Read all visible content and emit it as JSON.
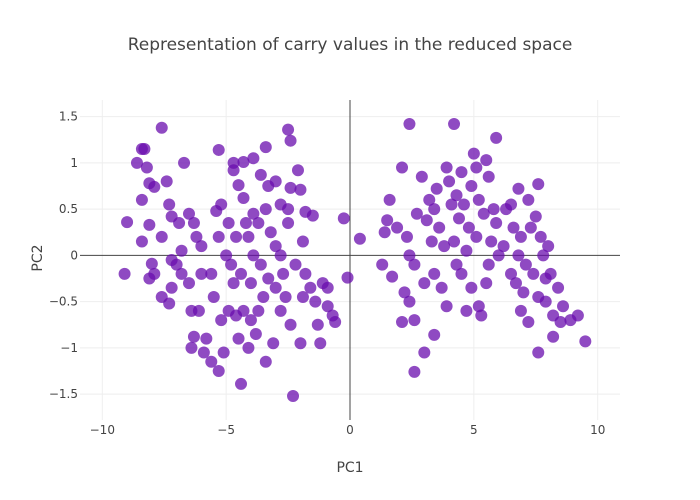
{
  "chart_data": {
    "type": "scatter",
    "title": "Representation of carry values in the reduced space",
    "xlabel": "PC1",
    "ylabel": "PC2",
    "xlim": [
      -10.9,
      10.9
    ],
    "ylim": [
      -1.78,
      1.68
    ],
    "x_ticks": [
      -10,
      -5,
      0,
      5,
      10
    ],
    "y_ticks": [
      -1.5,
      -1,
      -0.5,
      0,
      0.5,
      1,
      1.5
    ],
    "x_tick_labels": [
      "−10",
      "−5",
      "0",
      "5",
      "10"
    ],
    "y_tick_labels": [
      "−1.5",
      "−1",
      "−0.5",
      "0",
      "0.5",
      "1",
      "1.5"
    ],
    "grid": true,
    "zero_lines": true,
    "marker_color": "#6a0dad",
    "points": [
      {
        "x": -8.4,
        "y": 1.15
      },
      {
        "x": -7.6,
        "y": 1.38
      },
      {
        "x": -8.6,
        "y": 1.0
      },
      {
        "x": -8.2,
        "y": 0.95
      },
      {
        "x": -8.1,
        "y": 0.78
      },
      {
        "x": -7.9,
        "y": 0.74
      },
      {
        "x": -8.4,
        "y": 0.6
      },
      {
        "x": -9.0,
        "y": 0.36
      },
      {
        "x": -8.1,
        "y": 0.33
      },
      {
        "x": -8.4,
        "y": 0.15
      },
      {
        "x": -8.0,
        "y": -0.09
      },
      {
        "x": -8.1,
        "y": -0.25
      },
      {
        "x": -7.6,
        "y": -0.45
      },
      {
        "x": -7.3,
        "y": -0.52
      },
      {
        "x": -9.1,
        "y": -0.2
      },
      {
        "x": -7.4,
        "y": 0.8
      },
      {
        "x": -7.3,
        "y": 0.55
      },
      {
        "x": -7.2,
        "y": 0.42
      },
      {
        "x": -6.9,
        "y": 0.35
      },
      {
        "x": -6.7,
        "y": 1.0
      },
      {
        "x": -6.5,
        "y": 0.45
      },
      {
        "x": -6.3,
        "y": 0.35
      },
      {
        "x": -6.2,
        "y": 0.2
      },
      {
        "x": -6.0,
        "y": 0.1
      },
      {
        "x": -7.0,
        "y": -0.1
      },
      {
        "x": -6.8,
        "y": -0.2
      },
      {
        "x": -6.5,
        "y": -0.3
      },
      {
        "x": -7.2,
        "y": -0.35
      },
      {
        "x": -6.4,
        "y": -0.6
      },
      {
        "x": -6.1,
        "y": -0.6
      },
      {
        "x": -6.3,
        "y": -0.88
      },
      {
        "x": -6.4,
        "y": -1.0
      },
      {
        "x": -5.8,
        "y": -0.9
      },
      {
        "x": -5.6,
        "y": -0.2
      },
      {
        "x": -5.5,
        "y": -0.45
      },
      {
        "x": -5.4,
        "y": 0.48
      },
      {
        "x": -5.2,
        "y": 0.55
      },
      {
        "x": -5.3,
        "y": 1.14
      },
      {
        "x": -4.7,
        "y": 1.0
      },
      {
        "x": -4.3,
        "y": 1.01
      },
      {
        "x": -3.9,
        "y": 1.05
      },
      {
        "x": -3.4,
        "y": 1.17
      },
      {
        "x": -4.7,
        "y": 0.92
      },
      {
        "x": -4.5,
        "y": 0.76
      },
      {
        "x": -3.6,
        "y": 0.87
      },
      {
        "x": -3.3,
        "y": 0.75
      },
      {
        "x": -2.5,
        "y": 1.36
      },
      {
        "x": -2.4,
        "y": 1.24
      },
      {
        "x": -2.1,
        "y": 0.92
      },
      {
        "x": -2.0,
        "y": 0.71
      },
      {
        "x": -2.4,
        "y": 0.73
      },
      {
        "x": -2.5,
        "y": 0.5
      },
      {
        "x": -1.8,
        "y": 0.47
      },
      {
        "x": -1.5,
        "y": 0.43
      },
      {
        "x": -1.9,
        "y": 0.15
      },
      {
        "x": -2.5,
        "y": 0.35
      },
      {
        "x": -4.9,
        "y": 0.35
      },
      {
        "x": -4.6,
        "y": 0.2
      },
      {
        "x": -4.3,
        "y": 0.62
      },
      {
        "x": -3.9,
        "y": 0.45
      },
      {
        "x": -3.7,
        "y": 0.35
      },
      {
        "x": -3.2,
        "y": 0.25
      },
      {
        "x": -3.0,
        "y": 0.1
      },
      {
        "x": -2.8,
        "y": 0.0
      },
      {
        "x": -4.1,
        "y": 0.2
      },
      {
        "x": -5.0,
        "y": 0.0
      },
      {
        "x": -4.8,
        "y": -0.1
      },
      {
        "x": -4.4,
        "y": -0.2
      },
      {
        "x": -4.0,
        "y": -0.3
      },
      {
        "x": -3.6,
        "y": -0.1
      },
      {
        "x": -3.3,
        "y": -0.25
      },
      {
        "x": -3.0,
        "y": -0.35
      },
      {
        "x": -2.7,
        "y": -0.2
      },
      {
        "x": -2.2,
        "y": -0.1
      },
      {
        "x": -1.8,
        "y": -0.2
      },
      {
        "x": -1.6,
        "y": -0.35
      },
      {
        "x": -1.4,
        "y": -0.5
      },
      {
        "x": -1.1,
        "y": -0.3
      },
      {
        "x": -0.9,
        "y": -0.55
      },
      {
        "x": -0.7,
        "y": -0.65
      },
      {
        "x": -0.6,
        "y": -0.72
      },
      {
        "x": -0.1,
        "y": -0.24
      },
      {
        "x": -0.25,
        "y": 0.4
      },
      {
        "x": -4.9,
        "y": -0.6
      },
      {
        "x": -4.6,
        "y": -0.65
      },
      {
        "x": -4.3,
        "y": -0.6
      },
      {
        "x": -4.0,
        "y": -0.7
      },
      {
        "x": -3.7,
        "y": -0.6
      },
      {
        "x": -4.5,
        "y": -0.9
      },
      {
        "x": -4.1,
        "y": -1.0
      },
      {
        "x": -5.1,
        "y": -1.05
      },
      {
        "x": -5.3,
        "y": -1.25
      },
      {
        "x": -4.4,
        "y": -1.39
      },
      {
        "x": -3.4,
        "y": -1.15
      },
      {
        "x": -3.1,
        "y": -0.95
      },
      {
        "x": -2.8,
        "y": -0.6
      },
      {
        "x": -2.4,
        "y": -0.75
      },
      {
        "x": -2.0,
        "y": -0.95
      },
      {
        "x": -2.3,
        "y": -1.52
      },
      {
        "x": -5.6,
        "y": -1.15
      },
      {
        "x": -5.9,
        "y": -1.05
      },
      {
        "x": -4.7,
        "y": -0.3
      },
      {
        "x": -3.9,
        "y": 0.0
      },
      {
        "x": -3.4,
        "y": 0.5
      },
      {
        "x": -3.0,
        "y": 0.8
      },
      {
        "x": -2.8,
        "y": 0.55
      },
      {
        "x": -6.0,
        "y": -0.2
      },
      {
        "x": -5.3,
        "y": 0.2
      },
      {
        "x": -4.2,
        "y": 0.35
      },
      {
        "x": -3.5,
        "y": -0.45
      },
      {
        "x": -2.6,
        "y": -0.45
      },
      {
        "x": -1.3,
        "y": -0.75
      },
      {
        "x": -1.2,
        "y": -0.95
      },
      {
        "x": -0.9,
        "y": -0.35
      },
      {
        "x": -1.9,
        "y": -0.45
      },
      {
        "x": -3.8,
        "y": -0.85
      },
      {
        "x": -5.2,
        "y": -0.7
      },
      {
        "x": -6.8,
        "y": 0.05
      },
      {
        "x": -7.6,
        "y": 0.2
      },
      {
        "x": -7.9,
        "y": -0.2
      },
      {
        "x": -7.2,
        "y": -0.05
      },
      {
        "x": -8.3,
        "y": 1.15
      },
      {
        "x": 1.5,
        "y": 0.38
      },
      {
        "x": 1.6,
        "y": 0.6
      },
      {
        "x": 1.4,
        "y": 0.25
      },
      {
        "x": 1.3,
        "y": -0.1
      },
      {
        "x": 0.4,
        "y": 0.18
      },
      {
        "x": 1.7,
        "y": -0.23
      },
      {
        "x": 2.1,
        "y": 0.95
      },
      {
        "x": 2.4,
        "y": 1.42
      },
      {
        "x": 1.9,
        "y": 0.3
      },
      {
        "x": 2.3,
        "y": 0.2
      },
      {
        "x": 2.4,
        "y": 0.0
      },
      {
        "x": 2.6,
        "y": -0.1
      },
      {
        "x": 2.2,
        "y": -0.4
      },
      {
        "x": 2.4,
        "y": -0.5
      },
      {
        "x": 2.1,
        "y": -0.72
      },
      {
        "x": 2.6,
        "y": -0.7
      },
      {
        "x": 3.0,
        "y": -1.05
      },
      {
        "x": 2.6,
        "y": -1.26
      },
      {
        "x": 3.4,
        "y": -0.86
      },
      {
        "x": 2.9,
        "y": 0.85
      },
      {
        "x": 3.2,
        "y": 0.6
      },
      {
        "x": 3.4,
        "y": 0.5
      },
      {
        "x": 3.1,
        "y": 0.38
      },
      {
        "x": 3.6,
        "y": 0.3
      },
      {
        "x": 3.3,
        "y": 0.15
      },
      {
        "x": 3.8,
        "y": 0.1
      },
      {
        "x": 3.4,
        "y": -0.2
      },
      {
        "x": 3.7,
        "y": -0.35
      },
      {
        "x": 3.9,
        "y": -0.55
      },
      {
        "x": 4.2,
        "y": 1.42
      },
      {
        "x": 4.0,
        "y": 0.8
      },
      {
        "x": 4.3,
        "y": 0.65
      },
      {
        "x": 4.6,
        "y": 0.55
      },
      {
        "x": 4.4,
        "y": 0.4
      },
      {
        "x": 4.8,
        "y": 0.3
      },
      {
        "x": 4.2,
        "y": 0.15
      },
      {
        "x": 4.7,
        "y": 0.05
      },
      {
        "x": 4.3,
        "y": -0.1
      },
      {
        "x": 4.5,
        "y": -0.2
      },
      {
        "x": 4.9,
        "y": -0.35
      },
      {
        "x": 4.7,
        "y": -0.6
      },
      {
        "x": 5.2,
        "y": -0.55
      },
      {
        "x": 5.3,
        "y": -0.65
      },
      {
        "x": 5.0,
        "y": 1.1
      },
      {
        "x": 5.1,
        "y": 0.95
      },
      {
        "x": 5.5,
        "y": 1.03
      },
      {
        "x": 5.6,
        "y": 0.85
      },
      {
        "x": 5.9,
        "y": 1.27
      },
      {
        "x": 5.2,
        "y": 0.6
      },
      {
        "x": 5.4,
        "y": 0.45
      },
      {
        "x": 5.8,
        "y": 0.5
      },
      {
        "x": 5.9,
        "y": 0.35
      },
      {
        "x": 5.7,
        "y": 0.15
      },
      {
        "x": 6.0,
        "y": 0.0
      },
      {
        "x": 5.6,
        "y": -0.1
      },
      {
        "x": 5.5,
        "y": -0.3
      },
      {
        "x": 6.3,
        "y": 0.5
      },
      {
        "x": 6.5,
        "y": 0.55
      },
      {
        "x": 6.8,
        "y": 0.72
      },
      {
        "x": 7.2,
        "y": 0.6
      },
      {
        "x": 7.6,
        "y": 0.77
      },
      {
        "x": 6.6,
        "y": 0.3
      },
      {
        "x": 6.9,
        "y": 0.2
      },
      {
        "x": 7.3,
        "y": 0.3
      },
      {
        "x": 7.7,
        "y": 0.2
      },
      {
        "x": 6.8,
        "y": 0.0
      },
      {
        "x": 7.1,
        "y": -0.1
      },
      {
        "x": 7.4,
        "y": -0.2
      },
      {
        "x": 6.7,
        "y": -0.3
      },
      {
        "x": 7.0,
        "y": -0.4
      },
      {
        "x": 6.9,
        "y": -0.6
      },
      {
        "x": 7.2,
        "y": -0.72
      },
      {
        "x": 7.6,
        "y": -0.45
      },
      {
        "x": 7.9,
        "y": -0.25
      },
      {
        "x": 8.1,
        "y": -0.2
      },
      {
        "x": 8.4,
        "y": -0.35
      },
      {
        "x": 8.6,
        "y": -0.55
      },
      {
        "x": 8.2,
        "y": -0.65
      },
      {
        "x": 8.5,
        "y": -0.72
      },
      {
        "x": 8.9,
        "y": -0.7
      },
      {
        "x": 9.2,
        "y": -0.65
      },
      {
        "x": 9.5,
        "y": -0.93
      },
      {
        "x": 7.6,
        "y": -1.05
      },
      {
        "x": 8.2,
        "y": -0.88
      },
      {
        "x": 7.8,
        "y": 0.0
      },
      {
        "x": 8.0,
        "y": 0.1
      },
      {
        "x": 7.5,
        "y": 0.42
      },
      {
        "x": 6.2,
        "y": 0.1
      },
      {
        "x": 4.5,
        "y": 0.9
      },
      {
        "x": 3.9,
        "y": 0.95
      },
      {
        "x": 4.9,
        "y": 0.75
      },
      {
        "x": 2.7,
        "y": 0.45
      },
      {
        "x": 3.5,
        "y": 0.72
      },
      {
        "x": 4.1,
        "y": 0.55
      },
      {
        "x": 6.5,
        "y": -0.2
      },
      {
        "x": 7.9,
        "y": -0.5
      },
      {
        "x": 5.1,
        "y": 0.2
      },
      {
        "x": 3.0,
        "y": -0.3
      }
    ]
  }
}
